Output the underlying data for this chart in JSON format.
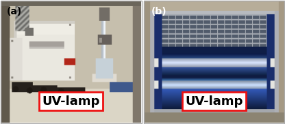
{
  "figsize": [
    4.16,
    1.82
  ],
  "dpi": 100,
  "label_a": "(a)",
  "label_b": "(b)",
  "text_uvlamp": "UV-lamp",
  "label_fontsize": 10,
  "uvlamp_fontsize": 13,
  "label_color": "#000000",
  "label_b_color": "#ffffff",
  "uvlamp_text_color": "#000000",
  "uvlamp_box_facecolor": "#ffffff",
  "uvlamp_box_edgecolor": "#ee1111",
  "border_color": "#cccccc",
  "outer_bg": "#ffffff",
  "panel_a_wall": [
    0.78,
    0.75,
    0.68
  ],
  "panel_a_shelf": [
    0.88,
    0.86,
    0.8
  ],
  "panel_b_bg": [
    0.05,
    0.1,
    0.22
  ]
}
